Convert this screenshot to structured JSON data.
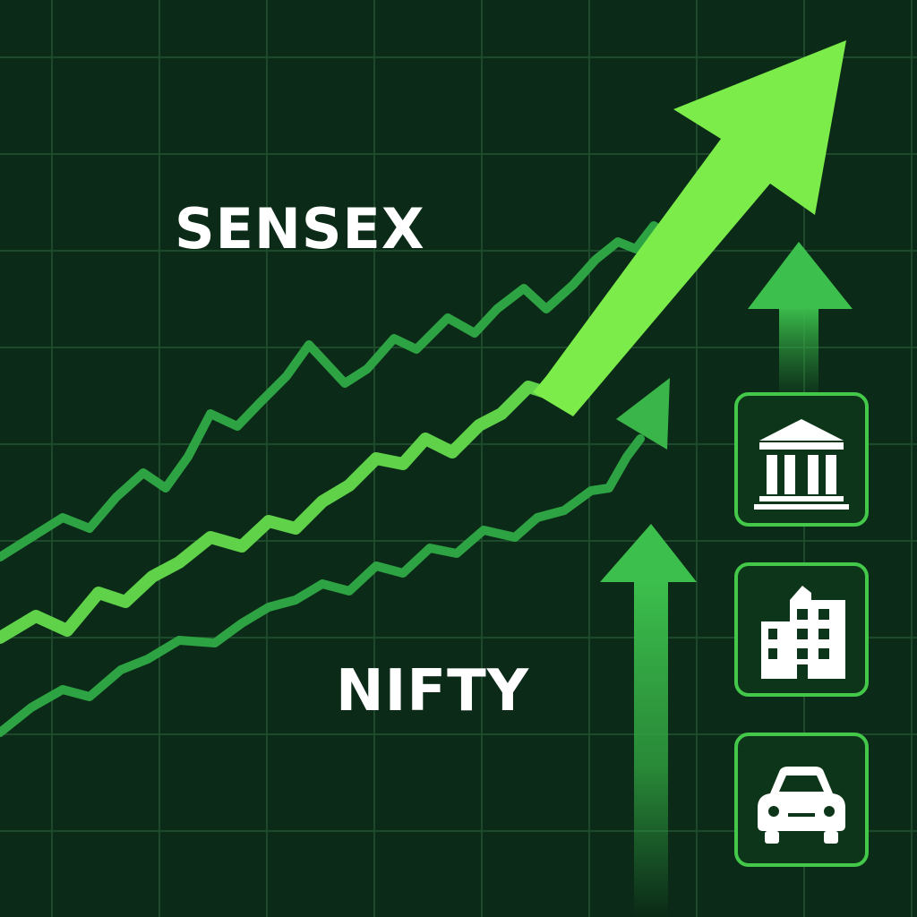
{
  "labels": {
    "sensex": "SENSEX",
    "nifty": "NIFTY"
  },
  "icons": [
    "bank-icon",
    "office-building-icon",
    "car-icon"
  ],
  "colors": {
    "background": "#0b2a17",
    "grid": "#1d4a2a",
    "line_dark": "#2ea343",
    "line_light": "#6ee04a",
    "arrow_bright": "#7cec4a",
    "arrow_mid": "#3ab54a",
    "tile_border": "#44c84a",
    "text": "#ffffff"
  }
}
